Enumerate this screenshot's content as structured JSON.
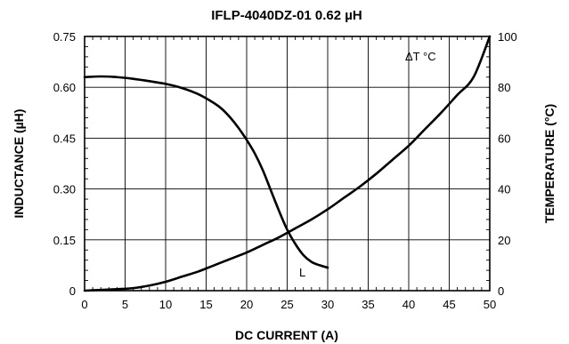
{
  "chart_data": {
    "type": "line",
    "title": "IFLP-4040DZ-01 0.62 µH",
    "xlabel": "DC CURRENT (A)",
    "ylabel": "INDUCTANCE (µH)",
    "y2label": "TEMPERATURE (°C)",
    "xlim": [
      0,
      50
    ],
    "ylim": [
      0,
      0.75
    ],
    "y2lim": [
      0,
      100
    ],
    "grid": true,
    "x_ticks": [
      "0",
      "5",
      "10",
      "15",
      "20",
      "25",
      "30",
      "35",
      "40",
      "45",
      "50"
    ],
    "y_ticks": [
      "0",
      "0.15",
      "0.30",
      "0.45",
      "0.60",
      "0.75"
    ],
    "y2_ticks": [
      "0",
      "20",
      "40",
      "60",
      "80",
      "100"
    ],
    "series": [
      {
        "name": "L",
        "axis": "left",
        "x": [
          0,
          2,
          4,
          6,
          8,
          10,
          12,
          14,
          16,
          17,
          18,
          19,
          20,
          21,
          22,
          23,
          24,
          25,
          26,
          27,
          28,
          29,
          30
        ],
        "y": [
          0.63,
          0.632,
          0.63,
          0.625,
          0.618,
          0.61,
          0.598,
          0.58,
          0.553,
          0.535,
          0.51,
          0.48,
          0.445,
          0.405,
          0.355,
          0.295,
          0.235,
          0.18,
          0.138,
          0.105,
          0.085,
          0.075,
          0.068
        ]
      },
      {
        "name": "ΔT °C",
        "axis": "right",
        "x": [
          0,
          2,
          4,
          6,
          8,
          10,
          12,
          14,
          16,
          18,
          20,
          22,
          24,
          26,
          28,
          30,
          32,
          34,
          36,
          38,
          40,
          42,
          44,
          46,
          48,
          50
        ],
        "y": [
          0,
          0.3,
          0.6,
          1.0,
          2.0,
          3.5,
          5.5,
          7.5,
          10,
          12.5,
          15,
          18,
          21,
          24.5,
          28,
          32,
          36.5,
          41,
          46,
          51.5,
          57,
          63.5,
          70,
          77,
          84,
          100
        ]
      }
    ],
    "annotations": [
      "L",
      "ΔT °C"
    ]
  }
}
